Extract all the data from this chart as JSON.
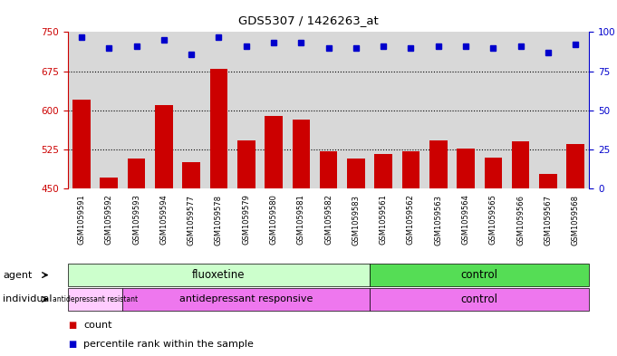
{
  "title": "GDS5307 / 1426263_at",
  "samples": [
    "GSM1059591",
    "GSM1059592",
    "GSM1059593",
    "GSM1059594",
    "GSM1059577",
    "GSM1059578",
    "GSM1059579",
    "GSM1059580",
    "GSM1059581",
    "GSM1059582",
    "GSM1059583",
    "GSM1059561",
    "GSM1059562",
    "GSM1059563",
    "GSM1059564",
    "GSM1059565",
    "GSM1059566",
    "GSM1059567",
    "GSM1059568"
  ],
  "counts": [
    620,
    472,
    508,
    610,
    500,
    679,
    543,
    590,
    582,
    521,
    508,
    517,
    521,
    543,
    527,
    510,
    540,
    478,
    535
  ],
  "percentile_ranks": [
    97,
    90,
    91,
    95,
    86,
    97,
    91,
    93,
    93,
    90,
    90,
    91,
    90,
    91,
    91,
    90,
    91,
    87,
    92
  ],
  "ylim_left": [
    450,
    750
  ],
  "ylim_right": [
    0,
    100
  ],
  "yticks_left": [
    450,
    525,
    600,
    675,
    750
  ],
  "yticks_right": [
    0,
    25,
    50,
    75,
    100
  ],
  "bar_color": "#cc0000",
  "dot_color": "#0000cc",
  "background_color": "#d8d8d8",
  "fluoxetine_light": "#ccffcc",
  "fluoxetine_dark": "#66ee66",
  "control_green": "#44dd44",
  "resistant_color": "#ffccff",
  "responsive_color": "#ee88ee",
  "control_purple": "#ee88ee",
  "agent_row_label": "agent",
  "individual_row_label": "individual",
  "fluoxetine_label": "fluoxetine",
  "control_agent_label": "control",
  "resistant_label": "antidepressant resistant",
  "responsive_label": "antidepressant responsive",
  "individual_control_label": "control",
  "legend_count": "count",
  "legend_percentile": "percentile rank within the sample",
  "n_fluoxetine": 11,
  "n_resistant": 2,
  "n_samples": 19
}
